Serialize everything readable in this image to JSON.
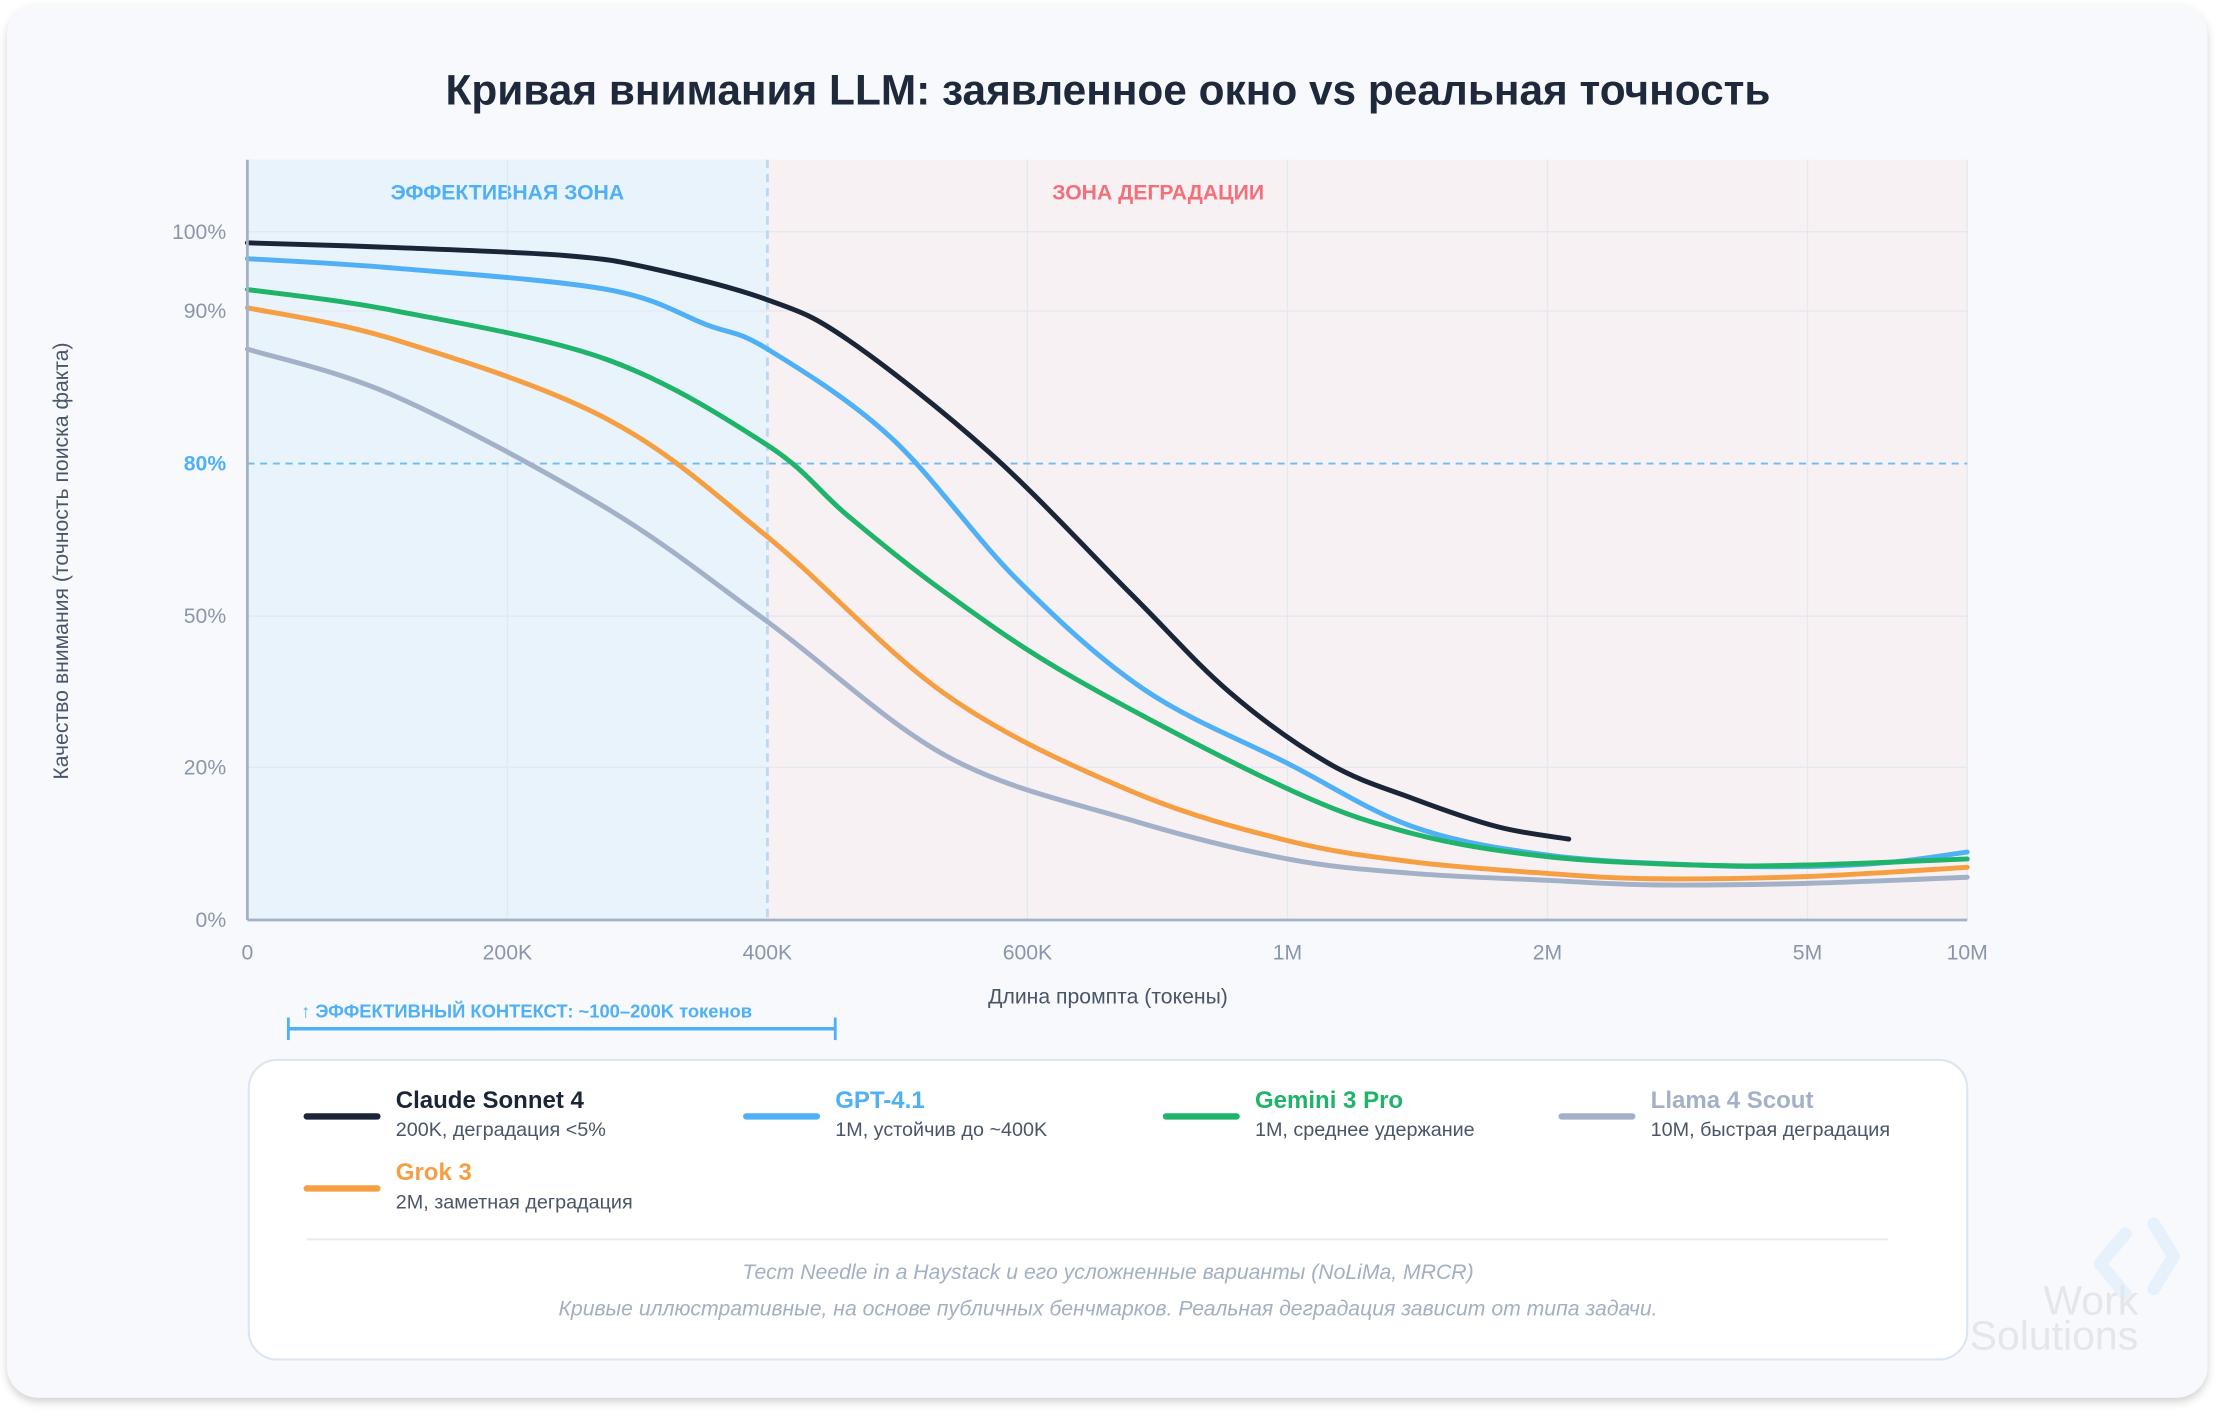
{
  "chart_data": {
    "type": "line",
    "title": "Кривая внимания LLM: заявленное окно vs реальная точность",
    "xlabel": "Длина промпта (токены)",
    "ylabel": "Качество внимания (точность поиска факта)",
    "x_ticks": [
      {
        "value": 0,
        "label": "0"
      },
      {
        "value": 200000,
        "label": "200K"
      },
      {
        "value": 400000,
        "label": "400K"
      },
      {
        "value": 600000,
        "label": "600K"
      },
      {
        "value": 1000000,
        "label": "1M"
      },
      {
        "value": 2000000,
        "label": "2M"
      },
      {
        "value": 5000000,
        "label": "5M"
      },
      {
        "value": 10000000,
        "label": "10M"
      }
    ],
    "y_ticks": [
      {
        "value": 0,
        "label": "0%"
      },
      {
        "value": 20,
        "label": "20%"
      },
      {
        "value": 50,
        "label": "50%"
      },
      {
        "value": 80,
        "label": "80%",
        "highlight": true
      },
      {
        "value": 90,
        "label": "90%"
      },
      {
        "value": 100,
        "label": "100%"
      }
    ],
    "ylim": [
      0,
      100
    ],
    "xlim": [
      0,
      10000000
    ],
    "grid": true,
    "threshold": {
      "value": 80,
      "color": "#6cbcf5"
    },
    "zones": [
      {
        "label": "ЭФФЕКТИВНАЯ ЗОНА",
        "from": 0,
        "to": 400000,
        "color": "#4fb0f5",
        "fill": "#e8f3fc"
      },
      {
        "label": "ЗОНА ДЕГРАДАЦИИ",
        "from": 400000,
        "to": 10000000,
        "color": "#f2707a",
        "fill": "#f7f1f4"
      }
    ],
    "annotation": "↑ ЭФФЕКТИВНЫЙ КОНТЕКСТ: ~100–200K токенов",
    "series": [
      {
        "name": "Claude Sonnet 4",
        "desc": "200K, деградация <5%",
        "color": "#1a2638",
        "points": [
          [
            0,
            98.6
          ],
          [
            114000,
            98.0
          ],
          [
            244000,
            97.0
          ],
          [
            310000,
            95.4
          ],
          [
            400000,
            91.4
          ],
          [
            462000,
            88.1
          ],
          [
            571000,
            80.7
          ],
          [
            759000,
            54.4
          ],
          [
            911000,
            34.9
          ],
          [
            1158000,
            20.8
          ],
          [
            1484000,
            15.9
          ],
          [
            1810000,
            12.2
          ],
          [
            2245000,
            10.6
          ]
        ]
      },
      {
        "name": "GPT-4.1",
        "desc": "1M, устойчив до ~400K",
        "color": "#4fb0f5",
        "points": [
          [
            0,
            96.6
          ],
          [
            114000,
            95.4
          ],
          [
            277000,
            92.7
          ],
          [
            353000,
            89.1
          ],
          [
            400000,
            87.5
          ],
          [
            495000,
            81.7
          ],
          [
            592000,
            57.2
          ],
          [
            780000,
            35.4
          ],
          [
            1000000,
            20.8
          ],
          [
            1484000,
            12.2
          ],
          [
            2000000,
            8.5
          ],
          [
            3710000,
            7.2
          ],
          [
            5000000,
            7.0
          ],
          [
            7680000,
            7.6
          ],
          [
            10000000,
            8.9
          ]
        ]
      },
      {
        "name": "Gemini 3 Pro",
        "desc": "1M, среднее удержание",
        "color": "#1fb46a",
        "points": [
          [
            0,
            92.7
          ],
          [
            114000,
            90.0
          ],
          [
            277000,
            86.8
          ],
          [
            400000,
            81.2
          ],
          [
            462000,
            69.7
          ],
          [
            538000,
            54.4
          ],
          [
            672000,
            37.7
          ],
          [
            1000000,
            17.2
          ],
          [
            1484000,
            11.3
          ],
          [
            2000000,
            8.3
          ],
          [
            3710000,
            7.2
          ],
          [
            5000000,
            7.2
          ],
          [
            10000000,
            8.0
          ]
        ]
      },
      {
        "name": "Llama 4 Scout",
        "desc": "10M, быстрая деградация",
        "color": "#a3b1c8",
        "points": [
          [
            0,
            87.5
          ],
          [
            114000,
            84.4
          ],
          [
            277000,
            71.1
          ],
          [
            400000,
            48.9
          ],
          [
            538000,
            22.2
          ],
          [
            759000,
            13.1
          ],
          [
            1000000,
            8.0
          ],
          [
            1484000,
            6.1
          ],
          [
            2000000,
            5.2
          ],
          [
            3220000,
            4.6
          ],
          [
            5000000,
            4.8
          ],
          [
            10000000,
            5.6
          ]
        ]
      },
      {
        "name": "Grok 3",
        "desc": "2M, заметная деградация",
        "color": "#f59e42",
        "points": [
          [
            0,
            90.4
          ],
          [
            114000,
            88.1
          ],
          [
            277000,
            82.9
          ],
          [
            400000,
            65.6
          ],
          [
            538000,
            34.3
          ],
          [
            759000,
            16.9
          ],
          [
            1000000,
            10.4
          ],
          [
            1484000,
            7.6
          ],
          [
            2000000,
            6.1
          ],
          [
            3220000,
            5.4
          ],
          [
            5000000,
            5.7
          ],
          [
            10000000,
            6.9
          ]
        ]
      }
    ],
    "footnotes": [
      "Тест Needle in a Haystack и его усложненные варианты (NoLiMa, MRCR)",
      "Кривые иллюстративные, на основе публичных бенчмарков. Реальная деградация зависит от типа задачи."
    ]
  },
  "watermark": {
    "line1": "Work",
    "line2": "Solutions"
  }
}
